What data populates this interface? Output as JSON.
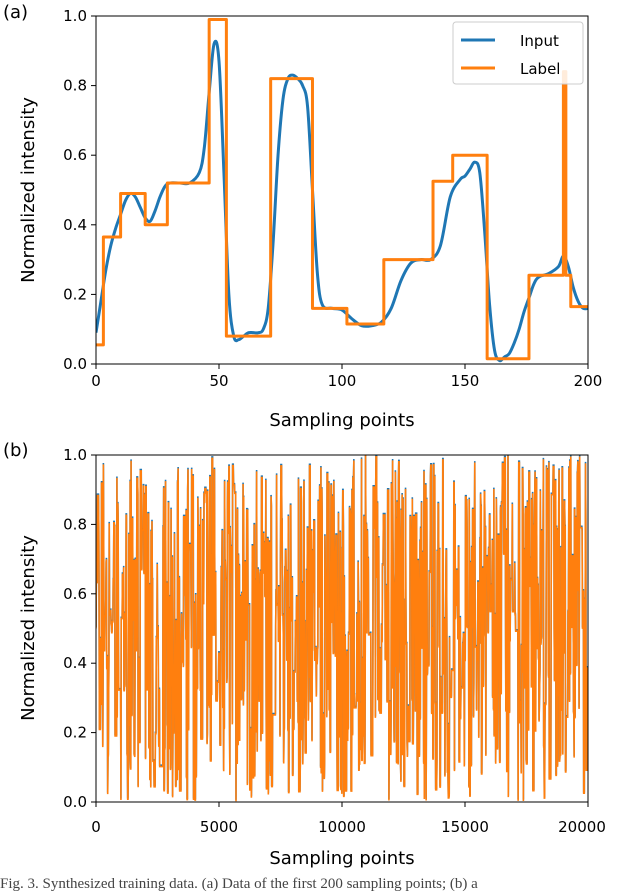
{
  "caption": "Fig. 3. Synthesized training data. (a) Data of the first 200 sampling points; (b) a",
  "colors": {
    "input": "#1f77b4",
    "label": "#ff7f0e"
  },
  "chart_data": [
    {
      "panel": "(a)",
      "type": "line",
      "xlabel": "Sampling points",
      "ylabel": "Normalized intensity",
      "xlim": [
        0,
        200
      ],
      "ylim": [
        0,
        1.0
      ],
      "xticks": [
        "0",
        "50",
        "100",
        "150",
        "200"
      ],
      "yticks": [
        "0.0",
        "0.2",
        "0.4",
        "0.6",
        "0.8",
        "1.0"
      ],
      "legend": {
        "position": "top-right",
        "entries": [
          "Input",
          "Label"
        ]
      },
      "series": [
        {
          "name": "Input",
          "color": "#1f77b4",
          "x": [
            0,
            2,
            4,
            6,
            8,
            10,
            12,
            14,
            16,
            18,
            20,
            22,
            24,
            26,
            28,
            30,
            34,
            38,
            42,
            44,
            46,
            48,
            50,
            52,
            54,
            56,
            58,
            60,
            62,
            64,
            66,
            68,
            70,
            72,
            74,
            76,
            78,
            80,
            82,
            84,
            86,
            88,
            90,
            92,
            96,
            100,
            104,
            108,
            112,
            116,
            120,
            124,
            128,
            132,
            136,
            140,
            144,
            148,
            150,
            152,
            154,
            156,
            158,
            160,
            162,
            164,
            166,
            168,
            170,
            172,
            174,
            176,
            178,
            180,
            184,
            188,
            190,
            192,
            194,
            196,
            198,
            200
          ],
          "y": [
            0.09,
            0.18,
            0.27,
            0.34,
            0.39,
            0.43,
            0.47,
            0.49,
            0.48,
            0.45,
            0.42,
            0.41,
            0.44,
            0.48,
            0.51,
            0.52,
            0.52,
            0.52,
            0.55,
            0.62,
            0.78,
            0.92,
            0.87,
            0.55,
            0.2,
            0.08,
            0.07,
            0.08,
            0.09,
            0.09,
            0.09,
            0.1,
            0.16,
            0.35,
            0.6,
            0.76,
            0.82,
            0.83,
            0.82,
            0.8,
            0.74,
            0.5,
            0.26,
            0.17,
            0.16,
            0.155,
            0.13,
            0.11,
            0.11,
            0.12,
            0.16,
            0.24,
            0.29,
            0.3,
            0.3,
            0.34,
            0.48,
            0.53,
            0.54,
            0.56,
            0.58,
            0.55,
            0.38,
            0.17,
            0.04,
            0.01,
            0.02,
            0.03,
            0.06,
            0.1,
            0.15,
            0.19,
            0.23,
            0.25,
            0.26,
            0.28,
            0.31,
            0.28,
            0.22,
            0.18,
            0.16,
            0.16
          ]
        },
        {
          "name": "Label",
          "color": "#ff7f0e",
          "x": [
            0,
            3,
            3,
            10,
            10,
            20,
            20,
            29,
            29,
            46,
            46,
            53,
            53,
            71,
            71,
            88,
            88,
            102,
            102,
            117,
            117,
            137,
            137,
            145,
            145,
            159,
            159,
            176,
            176,
            190,
            190,
            191,
            191,
            193,
            193,
            200
          ],
          "y": [
            0.055,
            0.055,
            0.365,
            0.365,
            0.49,
            0.49,
            0.4,
            0.4,
            0.52,
            0.52,
            0.99,
            0.99,
            0.08,
            0.08,
            0.82,
            0.82,
            0.16,
            0.16,
            0.115,
            0.115,
            0.3,
            0.3,
            0.525,
            0.525,
            0.6,
            0.6,
            0.015,
            0.015,
            0.255,
            0.255,
            0.84,
            0.84,
            0.255,
            0.255,
            0.165,
            0.165
          ]
        }
      ]
    },
    {
      "panel": "(b)",
      "type": "line",
      "xlabel": "Sampling points",
      "ylabel": "Normalized intensity",
      "xlim": [
        0,
        20000
      ],
      "ylim": [
        0,
        1.0
      ],
      "xticks": [
        "0",
        "5000",
        "10000",
        "15000",
        "20000"
      ],
      "yticks": [
        "0.0",
        "0.2",
        "0.4",
        "0.6",
        "0.8",
        "1.0"
      ],
      "series": [
        {
          "name": "Input",
          "color": "#1f77b4",
          "value_range": [
            0.0,
            1.0
          ],
          "points": 20000
        },
        {
          "name": "Label",
          "color": "#ff7f0e",
          "value_range": [
            0.0,
            1.0
          ],
          "points": 20000
        }
      ]
    }
  ]
}
